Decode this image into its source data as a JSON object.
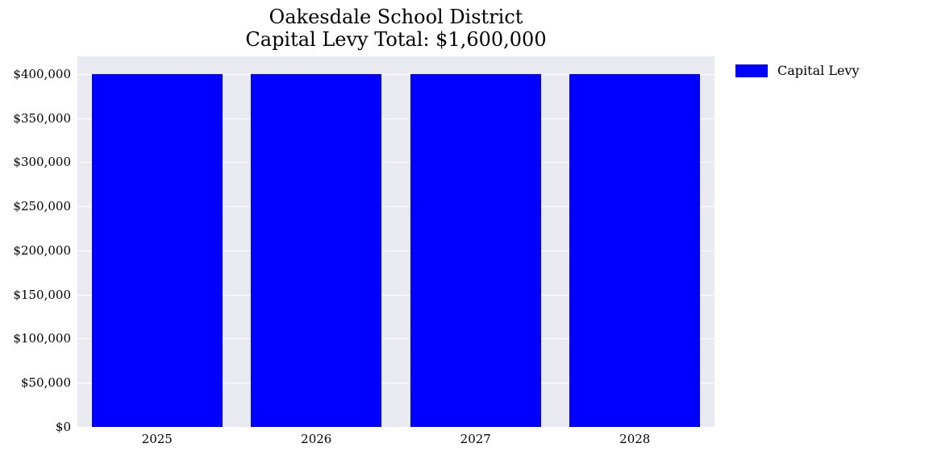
{
  "chart": {
    "type": "bar",
    "title_line1": "Oakesdale School District",
    "title_line2": "Capital Levy Total: $1,600,000",
    "title_fontsize": 24,
    "categories": [
      "2025",
      "2026",
      "2027",
      "2028"
    ],
    "values": [
      400000,
      400000,
      400000,
      400000
    ],
    "bar_color": "#0000ff",
    "background_color": "#eaeaf2",
    "grid_color": "#ffffff",
    "ylim": [
      0,
      420000
    ],
    "yticks": [
      0,
      50000,
      100000,
      150000,
      200000,
      250000,
      300000,
      350000,
      400000
    ],
    "ytick_labels": [
      "$0",
      "$50,000",
      "$100,000",
      "$150,000",
      "$200,000",
      "$250,000",
      "$300,000",
      "$350,000",
      "$400,000"
    ],
    "tick_fontsize": 15,
    "bar_width": 0.82,
    "legend": {
      "label": "Capital Levy",
      "color": "#0000ff",
      "fontsize": 16
    }
  }
}
